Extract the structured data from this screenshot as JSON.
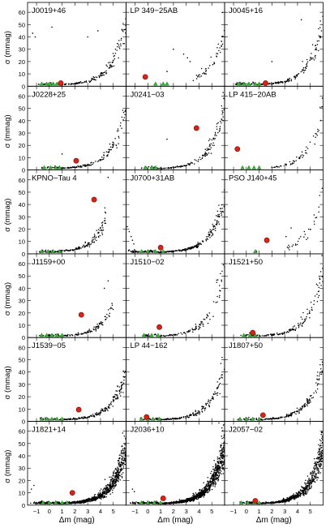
{
  "figure": {
    "ylabel": "σ (mmag)",
    "xlabel": "Δm (mag)",
    "colors": {
      "point": "#000000",
      "target": "#d62418",
      "target_edge": "#7a0a06",
      "reference": "#33b833",
      "reference_edge": "#1d6e1d"
    }
  },
  "chart_data": {
    "type": "scatter",
    "grid_layout": "6 rows x 3 columns, shared axes",
    "xlim": [
      -1.7,
      6.0
    ],
    "ylim": [
      0,
      68
    ],
    "xticks": [
      "-1",
      "0",
      "1",
      "2",
      "3",
      "4",
      "5"
    ],
    "yticks": [
      "0",
      "10",
      "20",
      "30",
      "40",
      "50",
      "60"
    ],
    "xlabel": "Δm (mag)",
    "ylabel": "σ (mmag)",
    "panels": [
      {
        "name": "J0019+46",
        "row": 0,
        "col": 0,
        "target": [
          0.9,
          2.5
        ],
        "curve": {
          "m0": 1.0,
          "a": 2.5,
          "b": 0.95,
          "n": 170,
          "xmin": -0.9,
          "xmax": 6.0,
          "scatter": 0.13
        },
        "refs": [
          -0.6,
          -0.2,
          0.0,
          0.3,
          0.6
        ],
        "extra": [
          [
            -1.3,
            43
          ],
          [
            -1.1,
            40
          ],
          [
            0.2,
            48
          ],
          [
            3.0,
            40
          ],
          [
            3.8,
            45
          ]
        ]
      },
      {
        "name": "LP 349−25AB",
        "row": 0,
        "col": 1,
        "target": [
          -0.2,
          7.5
        ],
        "curve": {
          "m0": 1.0,
          "a": 2.7,
          "b": 0.9,
          "n": 45,
          "xmin": 3.5,
          "xmax": 6.0,
          "scatter": 0.15
        },
        "refs": [
          0.6,
          1.2,
          1.5
        ],
        "extra": [
          [
            1.5,
            12
          ],
          [
            2.0,
            30
          ],
          [
            2.8,
            26
          ],
          [
            3.1,
            23
          ],
          [
            3.3,
            20
          ]
        ]
      },
      {
        "name": "J0045+16",
        "row": 0,
        "col": 2,
        "target": [
          1.5,
          2.5
        ],
        "curve": {
          "m0": 1.0,
          "a": 2.5,
          "b": 0.95,
          "n": 170,
          "xmin": -0.9,
          "xmax": 6.0,
          "scatter": 0.13
        },
        "refs": [
          -0.6,
          -0.2,
          0.2,
          0.7,
          1.0
        ],
        "extra": [
          [
            2.0,
            20
          ],
          [
            4.3,
            54
          ]
        ]
      },
      {
        "name": "J0228+25",
        "row": 1,
        "col": 0,
        "target": [
          2.1,
          7.5
        ],
        "curve": {
          "m0": 1.0,
          "a": 2.6,
          "b": 0.93,
          "n": 160,
          "xmin": -0.6,
          "xmax": 6.0,
          "scatter": 0.14
        },
        "refs": [
          -0.4,
          0.1,
          0.5,
          0.8
        ],
        "extra": [
          [
            1.0,
            13
          ]
        ]
      },
      {
        "name": "J0241−03",
        "row": 1,
        "col": 1,
        "target": [
          3.8,
          34
        ],
        "curve": {
          "m0": 0.8,
          "a": 2.5,
          "b": 0.95,
          "n": 170,
          "xmin": -0.5,
          "xmax": 6.0,
          "scatter": 0.14
        },
        "refs": [
          -0.2,
          0.3,
          0.6
        ],
        "extra": [
          [
            1.5,
            25
          ]
        ]
      },
      {
        "name": "LP 415−20AB",
        "row": 1,
        "col": 2,
        "target": [
          -0.7,
          17
        ],
        "curve": {
          "m0": 1.0,
          "a": 2.7,
          "b": 0.92,
          "n": 60,
          "xmin": 1.8,
          "xmax": 6.0,
          "scatter": 0.15
        },
        "refs": [
          -0.3,
          0.2,
          0.6,
          1.0
        ],
        "extra": []
      },
      {
        "name": "KPNO−Tau 4",
        "row": 2,
        "col": 0,
        "target": [
          3.5,
          44
        ],
        "curve": {
          "m0": 1.8,
          "a": 3.2,
          "b": 1.15,
          "n": 170,
          "xmin": -0.8,
          "xmax": 4.5,
          "scatter": 0.14
        },
        "refs": [
          -0.6,
          -0.1,
          0.3,
          0.8
        ],
        "extra": [
          [
            4.6,
            62
          ]
        ]
      },
      {
        "name": "J0700+31AB",
        "row": 2,
        "col": 1,
        "target": [
          1.0,
          5
        ],
        "curve": {
          "m0": 1.0,
          "a": 2.1,
          "b": 0.95,
          "n": 320,
          "xmin": -1.6,
          "xmax": 6.0,
          "scatter": 0.12
        },
        "refs": [
          -0.5,
          0.0,
          0.6,
          1.2
        ],
        "extra": [
          [
            -1.6,
            22
          ],
          [
            -1.45,
            18
          ],
          [
            -1.3,
            14
          ],
          [
            -1.2,
            11
          ],
          [
            -1.1,
            8
          ]
        ]
      },
      {
        "name": "PSO J140+45",
        "row": 2,
        "col": 2,
        "target": [
          1.6,
          11
        ],
        "curve": {
          "m0": 1.0,
          "a": 3.0,
          "b": 0.9,
          "n": 30,
          "xmin": 3.2,
          "xmax": 6.0,
          "scatter": 0.15
        },
        "refs": [
          0.7
        ],
        "extra": [
          [
            0.8,
            2
          ],
          [
            3.1,
            14
          ],
          [
            3.5,
            21
          ]
        ]
      },
      {
        "name": "J1159+00",
        "row": 3,
        "col": 0,
        "target": [
          2.5,
          18.5
        ],
        "curve": {
          "m0": 1.0,
          "a": 2.6,
          "b": 1.0,
          "n": 130,
          "xmin": -0.8,
          "xmax": 5.0,
          "scatter": 0.14
        },
        "refs": [
          -0.6,
          -0.2,
          0.2,
          0.6,
          1.0
        ],
        "extra": [
          [
            4.3,
            40
          ],
          [
            4.6,
            46
          ]
        ]
      },
      {
        "name": "J1510−02",
        "row": 3,
        "col": 1,
        "target": [
          0.9,
          8.5
        ],
        "curve": {
          "m0": 1.0,
          "a": 2.6,
          "b": 0.95,
          "n": 120,
          "xmin": -0.5,
          "xmax": 6.0,
          "scatter": 0.14
        },
        "refs": [
          -0.3,
          0.3,
          0.8
        ],
        "extra": []
      },
      {
        "name": "J1521+50",
        "row": 3,
        "col": 2,
        "target": [
          0.5,
          4
        ],
        "curve": {
          "m0": 1.0,
          "a": 2.6,
          "b": 0.95,
          "n": 140,
          "xmin": -0.5,
          "xmax": 6.0,
          "scatter": 0.14
        },
        "refs": [
          -0.2,
          0.3,
          0.7
        ],
        "extra": []
      },
      {
        "name": "J1539−05",
        "row": 4,
        "col": 0,
        "target": [
          2.3,
          9.5
        ],
        "curve": {
          "m0": 1.0,
          "a": 2.3,
          "b": 0.9,
          "n": 240,
          "xmin": -0.8,
          "xmax": 6.0,
          "scatter": 0.13
        },
        "refs": [
          -0.6,
          -0.2,
          0.2,
          0.6,
          1.0
        ],
        "extra": []
      },
      {
        "name": "LP 44−162",
        "row": 4,
        "col": 1,
        "target": [
          -0.1,
          3.5
        ],
        "curve": {
          "m0": 1.0,
          "a": 2.4,
          "b": 0.92,
          "n": 200,
          "xmin": -0.7,
          "xmax": 6.0,
          "scatter": 0.13
        },
        "refs": [
          -0.5,
          0.0,
          0.4,
          0.9
        ],
        "extra": []
      },
      {
        "name": "J1807+50",
        "row": 4,
        "col": 2,
        "target": [
          1.3,
          5
        ],
        "curve": {
          "m0": 1.0,
          "a": 2.4,
          "b": 0.93,
          "n": 200,
          "xmin": -0.7,
          "xmax": 6.0,
          "scatter": 0.13
        },
        "refs": [
          -0.5,
          0.0,
          0.5,
          1.0
        ],
        "extra": []
      },
      {
        "name": "J1821+14",
        "row": 5,
        "col": 0,
        "target": [
          1.8,
          10
        ],
        "curve": {
          "m0": 1.0,
          "a": 2.2,
          "b": 0.95,
          "n": 900,
          "xmin": -1.6,
          "xmax": 6.0,
          "scatter": 0.18
        },
        "refs": [
          -0.5,
          0.0,
          0.5,
          1.0,
          1.4
        ],
        "extra": [
          [
            -1.4,
            13
          ],
          [
            -1.2,
            16
          ]
        ]
      },
      {
        "name": "J2036+10",
        "row": 5,
        "col": 1,
        "target": [
          1.2,
          5.5
        ],
        "curve": {
          "m0": 0.9,
          "a": 2.2,
          "b": 0.95,
          "n": 1100,
          "xmin": -1.4,
          "xmax": 6.0,
          "scatter": 0.18
        },
        "refs": [
          -0.5,
          0.0,
          0.5,
          1.0
        ],
        "extra": [
          [
            -1.2,
            13
          ],
          [
            -1.05,
            11
          ]
        ]
      },
      {
        "name": "J2057−02",
        "row": 5,
        "col": 2,
        "target": [
          0.7,
          3.5
        ],
        "curve": {
          "m0": 1.0,
          "a": 2.2,
          "b": 0.95,
          "n": 700,
          "xmin": -0.9,
          "xmax": 6.0,
          "scatter": 0.17
        },
        "refs": [
          -0.4,
          0.1,
          0.6,
          1.0
        ],
        "extra": []
      }
    ]
  }
}
